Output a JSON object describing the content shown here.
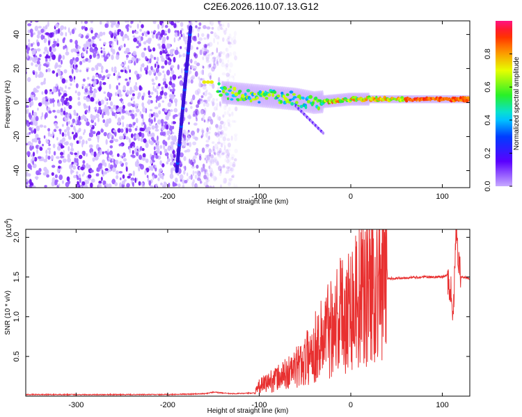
{
  "title": "C2E6.2026.110.07.13.G12",
  "chart_data": [
    {
      "type": "heatmap",
      "xlabel": "Height of straight line (km)",
      "ylabel": "Frequency (Hz)",
      "xlim": [
        -355,
        130
      ],
      "ylim": [
        -50,
        48
      ],
      "xticks": [
        -300,
        -200,
        -100,
        0,
        100
      ],
      "yticks": [
        -40,
        -20,
        0,
        20,
        40
      ],
      "noise_region_x": [
        -355,
        -125
      ],
      "tone_segment": {
        "x": [
          -190,
          -175
        ],
        "y": [
          -40,
          44
        ]
      },
      "trace": [
        {
          "x": -150,
          "y": 12
        },
        {
          "x": -140,
          "y": 6
        },
        {
          "x": -120,
          "y": 5
        },
        {
          "x": -100,
          "y": 4
        },
        {
          "x": -80,
          "y": 3
        },
        {
          "x": -60,
          "y": 2
        },
        {
          "x": -40,
          "y": 0
        },
        {
          "x": -20,
          "y": 1
        },
        {
          "x": 0,
          "y": 2
        },
        {
          "x": 20,
          "y": 2
        },
        {
          "x": 60,
          "y": 2
        },
        {
          "x": 100,
          "y": 2
        },
        {
          "x": 130,
          "y": 2
        }
      ],
      "colorbar": {
        "label": "Normalized spectral amplitude",
        "range": [
          0,
          1
        ],
        "ticks": [
          0.0,
          0.2,
          0.4,
          0.6,
          0.8
        ],
        "tick_labels": [
          "0.0",
          "0.2",
          "0.4",
          "0.6",
          "0.8"
        ]
      }
    },
    {
      "type": "line",
      "xlabel": "Height of straight line (km)",
      "ylabel": "SNR (10 * v/v)",
      "y_scale_label": "(x10",
      "y_scale_exp": "4",
      "y_scale_close": ")",
      "xlim": [
        -355,
        130
      ],
      "ylim": [
        0,
        2.1
      ],
      "xticks": [
        -300,
        -200,
        -100,
        0,
        100
      ],
      "yticks": [
        0.5,
        1.0,
        1.5,
        2.0
      ],
      "ytick_labels": [
        "0.5",
        "1.0",
        "1.5",
        "2.0"
      ],
      "color": "#e83030",
      "series": [
        {
          "name": "SNR",
          "x": [
            -355,
            -300,
            -250,
            -200,
            -160,
            -150,
            -130,
            -105,
            -100,
            -90,
            -75,
            -60,
            -50,
            -40,
            -30,
            -20,
            -10,
            0,
            10,
            20,
            30,
            40,
            60,
            80,
            100,
            105,
            110,
            112,
            115,
            120,
            130
          ],
          "y": [
            0.02,
            0.02,
            0.02,
            0.02,
            0.03,
            0.05,
            0.03,
            0.04,
            0.12,
            0.18,
            0.25,
            0.35,
            0.45,
            0.6,
            0.75,
            0.95,
            1.05,
            1.15,
            1.3,
            1.4,
            1.45,
            1.48,
            1.49,
            1.5,
            1.5,
            1.52,
            1.3,
            1.0,
            2.05,
            1.5,
            1.48
          ]
        }
      ]
    }
  ]
}
